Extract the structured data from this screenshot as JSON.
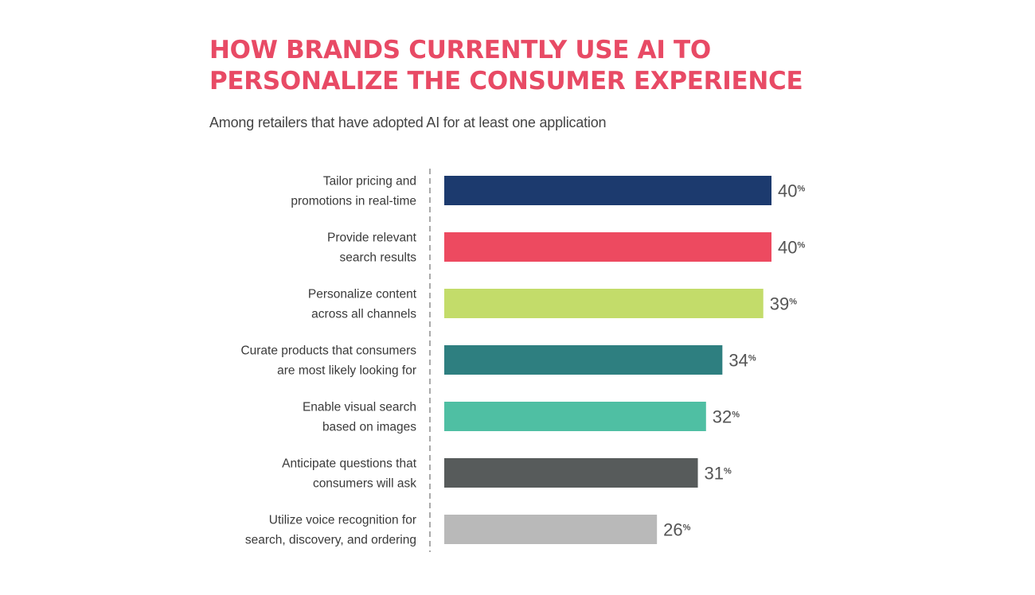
{
  "title": "HOW BRANDS CURRENTLY USE AI TO PERSONALIZE THE CONSUMER EXPERIENCE",
  "subtitle": "Among retailers that have adopted AI for at least one application",
  "colors": {
    "title": "#e84a65",
    "axis": "#aaaaaa"
  },
  "chart_data": {
    "type": "bar",
    "orientation": "horizontal",
    "title": "HOW BRANDS CURRENTLY USE AI TO PERSONALIZE THE CONSUMER EXPERIENCE",
    "subtitle": "Among retailers that have adopted AI for at least one application",
    "xlim": [
      0,
      40
    ],
    "grid": false,
    "unit": "%",
    "bars": [
      {
        "label": [
          "Tailor pricing and",
          "promotions in real-time"
        ],
        "value": 40,
        "color": "#1c3a6e"
      },
      {
        "label": [
          "Provide relevant",
          "search results"
        ],
        "value": 40,
        "color": "#ed4a60"
      },
      {
        "label": [
          "Personalize content",
          "across all channels"
        ],
        "value": 39,
        "color": "#c3dc6a"
      },
      {
        "label": [
          "Curate products that consumers",
          "are most likely looking for"
        ],
        "value": 34,
        "color": "#2e7f80"
      },
      {
        "label": [
          "Enable visual search",
          "based on images"
        ],
        "value": 32,
        "color": "#4fbfa3"
      },
      {
        "label": [
          "Anticipate questions that",
          "consumers will ask"
        ],
        "value": 31,
        "color": "#575b5b"
      },
      {
        "label": [
          "Utilize voice recognition for",
          "search, discovery, and ordering"
        ],
        "value": 26,
        "color": "#b9b9b9"
      }
    ]
  }
}
